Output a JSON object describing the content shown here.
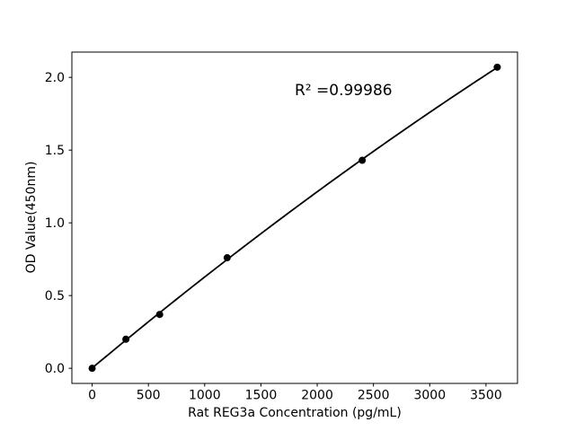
{
  "figure": {
    "background": "#ffffff",
    "frame_color": "#000000"
  },
  "chart_data": {
    "type": "scatter",
    "title": "",
    "xlabel": "Rat REG3a Concentration (pg/mL)",
    "ylabel": "OD Value(450nm)",
    "annotation": "R² =0.99986",
    "x": [
      0,
      300,
      600,
      1200,
      2400,
      3600
    ],
    "y": [
      0.0,
      0.2,
      0.37,
      0.76,
      1.43,
      2.07
    ],
    "fit": "quadratic",
    "marker_color": "#000000",
    "line_color": "#000000",
    "xlim": [
      -180,
      3780
    ],
    "ylim": [
      -0.104,
      2.174
    ],
    "x_ticks": [
      0,
      500,
      1000,
      1500,
      2000,
      2500,
      3000,
      3500
    ],
    "y_ticks": [
      0.0,
      0.5,
      1.0,
      1.5,
      2.0
    ],
    "y_tick_decimals": 1,
    "grid": false,
    "legend": null
  }
}
